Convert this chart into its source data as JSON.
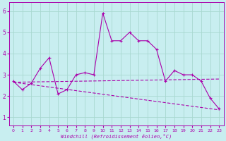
{
  "title": "",
  "xlabel": "Windchill (Refroidissement éolien,°C)",
  "bg_color": "#c8eef0",
  "line_color": "#aa00aa",
  "xlim": [
    -0.5,
    23.5
  ],
  "ylim": [
    0.6,
    6.4
  ],
  "xticks": [
    0,
    1,
    2,
    3,
    4,
    5,
    6,
    7,
    8,
    9,
    10,
    11,
    12,
    13,
    14,
    15,
    16,
    17,
    18,
    19,
    20,
    21,
    22,
    23
  ],
  "yticks": [
    1,
    2,
    3,
    4,
    5,
    6
  ],
  "series1_x": [
    0,
    1,
    2,
    3,
    4,
    5,
    6,
    7,
    8,
    9,
    10,
    11,
    12,
    13,
    14,
    15,
    16,
    17,
    18,
    19,
    20,
    21,
    22,
    23
  ],
  "series1_y": [
    2.7,
    2.3,
    2.6,
    3.3,
    3.8,
    2.1,
    2.3,
    3.0,
    3.1,
    3.0,
    5.9,
    4.6,
    4.6,
    5.0,
    4.6,
    4.6,
    4.2,
    2.7,
    3.2,
    3.0,
    3.0,
    2.7,
    1.9,
    1.4
  ],
  "series2_x": [
    0,
    23
  ],
  "series2_y": [
    2.65,
    1.35
  ],
  "series3_x": [
    0,
    23
  ],
  "series3_y": [
    2.65,
    2.8
  ],
  "grid_color": "#a8d8d0",
  "marker": "+"
}
